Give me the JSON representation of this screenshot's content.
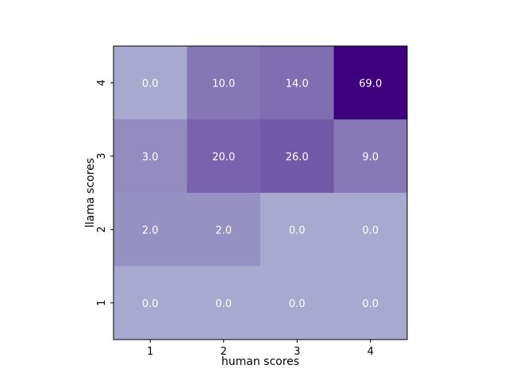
{
  "chart_data": {
    "type": "heatmap",
    "title": "",
    "xlabel": "human scores",
    "ylabel": "llama scores",
    "x_categories": [
      "1",
      "2",
      "3",
      "4"
    ],
    "y_categories": [
      "1",
      "2",
      "3",
      "4"
    ],
    "y_order": "bottom-to-top",
    "colormap": "Purples",
    "value_range": [
      0,
      69
    ],
    "cell_colors": {
      "low": "#a9a8cf",
      "mid": "#6b52a3",
      "high": "#3f007d"
    },
    "annotation_color": "#ffffff",
    "grid": false,
    "legend": "none",
    "rows": [
      {
        "y": "4",
        "values": [
          0.0,
          10.0,
          14.0,
          69.0
        ],
        "labels": [
          "0.0",
          "10.0",
          "14.0",
          "69.0"
        ]
      },
      {
        "y": "3",
        "values": [
          3.0,
          20.0,
          26.0,
          9.0
        ],
        "labels": [
          "3.0",
          "20.0",
          "26.0",
          "9.0"
        ]
      },
      {
        "y": "2",
        "values": [
          2.0,
          2.0,
          0.0,
          0.0
        ],
        "labels": [
          "2.0",
          "2.0",
          "0.0",
          "0.0"
        ]
      },
      {
        "y": "1",
        "values": [
          0.0,
          0.0,
          0.0,
          0.0
        ],
        "labels": [
          "0.0",
          "0.0",
          "0.0",
          "0.0"
        ]
      }
    ]
  }
}
